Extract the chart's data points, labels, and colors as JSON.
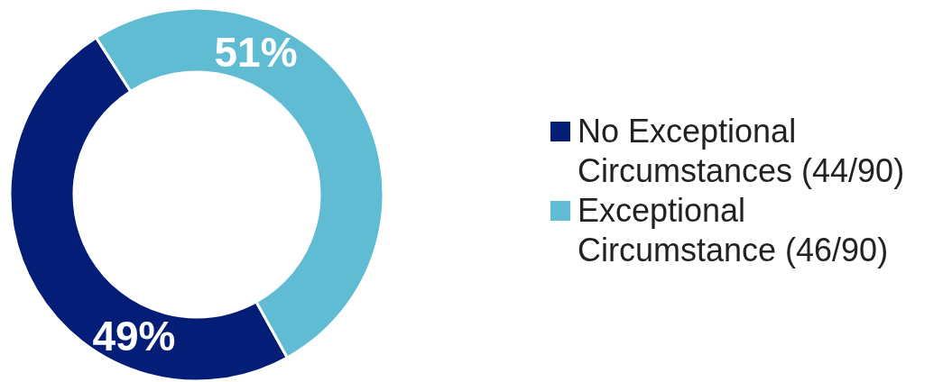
{
  "chart_data": {
    "type": "donut",
    "categories": [
      "No Exceptional Circumstances (44/90)",
      "Exceptional Circumstance (46/90)"
    ],
    "values": [
      49,
      51
    ],
    "colors": [
      "#041e78",
      "#5fbcd3"
    ],
    "value_labels": [
      "49%",
      "51%"
    ],
    "legend": "right"
  }
}
